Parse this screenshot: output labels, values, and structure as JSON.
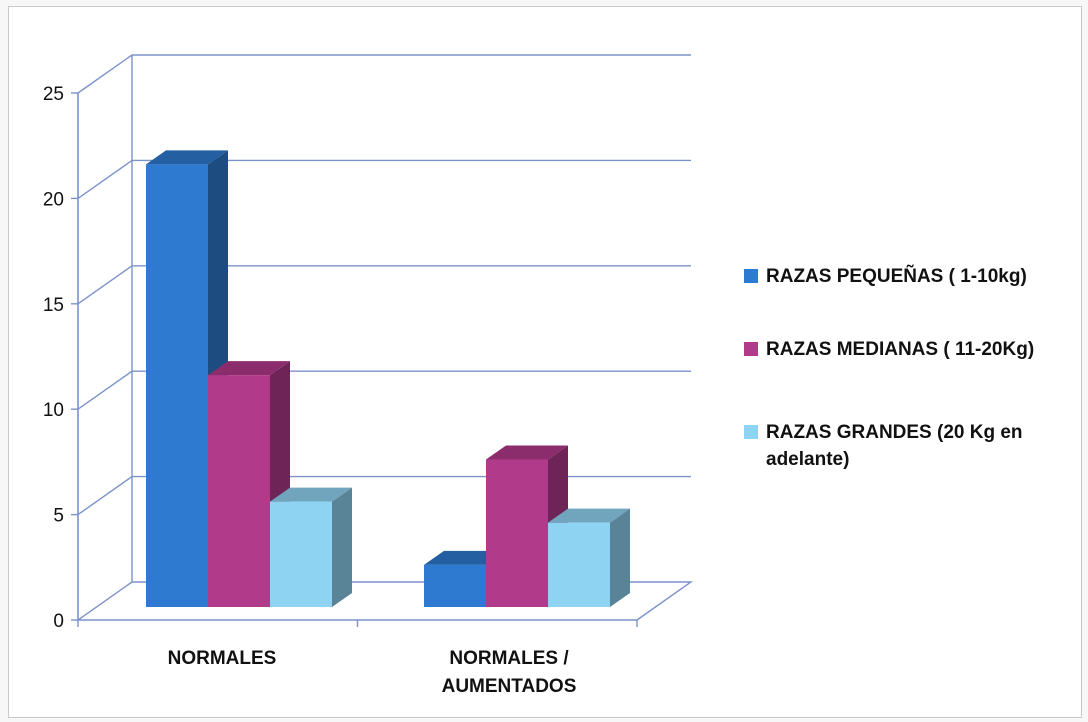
{
  "chart_data": {
    "type": "bar",
    "categories": [
      "NORMALES",
      "NORMALES / AUMENTADOS"
    ],
    "category_lines": [
      [
        "NORMALES"
      ],
      [
        "NORMALES /",
        "AUMENTADOS"
      ]
    ],
    "series": [
      {
        "name": "RAZAS PEQUEÑAS ( 1-10kg)",
        "name_lines": [
          "RAZAS PEQUEÑAS ( 1-10kg)"
        ],
        "values": [
          21,
          2
        ],
        "color": "#2e7ad0"
      },
      {
        "name": "RAZAS MEDIANAS ( 11-20Kg)",
        "name_lines": [
          "RAZAS MEDIANAS ( 11-20Kg)"
        ],
        "values": [
          11,
          7
        ],
        "color": "#b23a8a"
      },
      {
        "name": "RAZAS GRANDES (20 Kg en adelante)",
        "name_lines": [
          "RAZAS GRANDES (20 Kg en",
          "adelante)"
        ],
        "values": [
          5,
          4
        ],
        "color": "#8fd3f2"
      }
    ],
    "yticks": [
      0,
      5,
      10,
      15,
      20,
      25
    ],
    "ylim": [
      0,
      25
    ],
    "grid": true,
    "legend": "right",
    "style": "3d-clustered-column"
  }
}
